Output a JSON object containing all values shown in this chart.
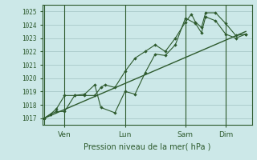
{
  "title": "Pression niveau de la mer( hPa )",
  "ylabel_values": [
    1017,
    1018,
    1019,
    1020,
    1021,
    1022,
    1023,
    1024,
    1025
  ],
  "ylim": [
    1016.5,
    1025.5
  ],
  "background_color": "#cce8e8",
  "grid_color": "#9bbcbc",
  "line_color": "#2d5a2d",
  "tick_label_color": "#2d5a2d",
  "day_labels": [
    "Ven",
    "Lun",
    "Sam",
    "Dim"
  ],
  "day_positions": [
    1,
    4,
    7,
    9
  ],
  "series1_x": [
    0.0,
    0.3,
    0.6,
    1.0,
    1.5,
    2.0,
    2.5,
    2.8,
    3.0,
    3.5,
    4.0,
    4.5,
    5.0,
    5.5,
    6.0,
    6.5,
    7.0,
    7.3,
    7.5,
    7.8,
    8.0,
    8.5,
    9.0,
    9.5,
    10.0
  ],
  "series1_y": [
    1017.0,
    1017.3,
    1017.5,
    1017.5,
    1018.7,
    1018.7,
    1018.7,
    1019.3,
    1019.5,
    1019.3,
    1020.5,
    1021.5,
    1022.0,
    1022.5,
    1022.0,
    1023.0,
    1024.2,
    1024.8,
    1024.2,
    1023.8,
    1024.9,
    1024.9,
    1024.1,
    1023.2,
    1023.3
  ],
  "series2_x": [
    0.0,
    0.3,
    0.6,
    1.0,
    1.5,
    2.0,
    2.5,
    2.8,
    3.5,
    4.0,
    4.5,
    5.0,
    5.5,
    6.0,
    6.5,
    7.0,
    7.5,
    7.8,
    8.0,
    8.5,
    9.0,
    9.5,
    10.0
  ],
  "series2_y": [
    1017.0,
    1017.3,
    1017.7,
    1018.7,
    1018.7,
    1018.8,
    1019.5,
    1017.8,
    1017.4,
    1019.0,
    1018.8,
    1020.4,
    1021.8,
    1021.7,
    1022.5,
    1024.5,
    1024.1,
    1023.4,
    1024.6,
    1024.3,
    1023.3,
    1023.0,
    1023.3
  ],
  "trend_x": [
    0.0,
    10.0
  ],
  "trend_y": [
    1017.0,
    1023.5
  ],
  "vline_positions": [
    0,
    1,
    4,
    7,
    9
  ],
  "xlim": [
    -0.1,
    10.3
  ]
}
